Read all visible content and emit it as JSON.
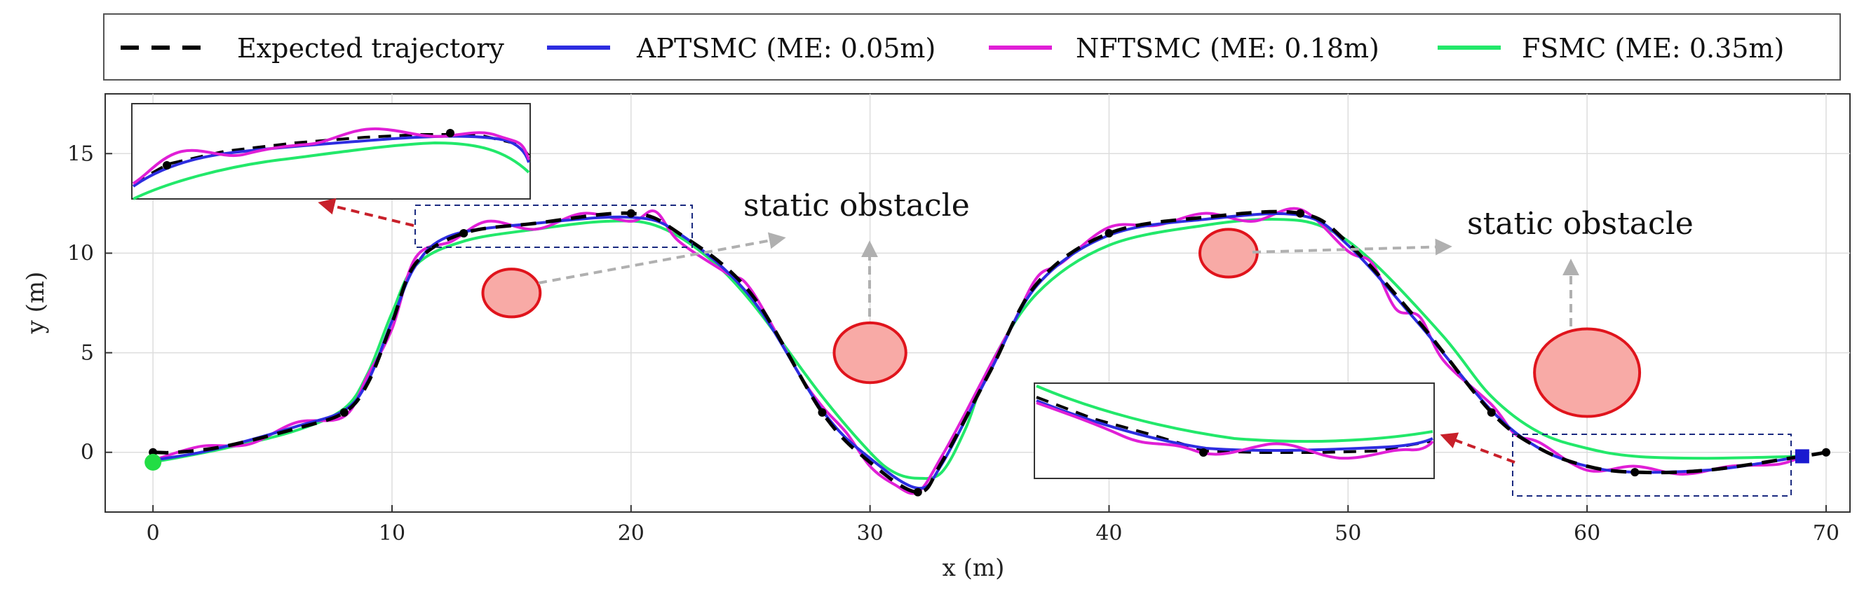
{
  "chart_data": {
    "type": "line",
    "xlabel": "x (m)",
    "ylabel": "y (m)",
    "xlim": [
      -2,
      71
    ],
    "ylim": [
      -3,
      18
    ],
    "xticks": [
      0,
      10,
      20,
      30,
      40,
      50,
      60,
      70
    ],
    "yticks": [
      0,
      5,
      10,
      15
    ],
    "grid": true,
    "legend_position": "top",
    "series": [
      {
        "name": "Expected trajectory",
        "color": "#000000",
        "style": "dashed",
        "points": [
          [
            0,
            0
          ],
          [
            1,
            0
          ],
          [
            3,
            0.3
          ],
          [
            6,
            1.2
          ],
          [
            8,
            2
          ],
          [
            9,
            3.5
          ],
          [
            10,
            6.5
          ],
          [
            11,
            9.5
          ],
          [
            13,
            11
          ],
          [
            16,
            11.5
          ],
          [
            20,
            12
          ],
          [
            22,
            11
          ],
          [
            25,
            8
          ],
          [
            28,
            2
          ],
          [
            30,
            -0.5
          ],
          [
            32,
            -2
          ],
          [
            33,
            -0.5
          ],
          [
            35,
            4
          ],
          [
            37,
            8.5
          ],
          [
            40,
            11
          ],
          [
            44,
            11.8
          ],
          [
            48,
            12
          ],
          [
            50,
            10.5
          ],
          [
            53,
            6.5
          ],
          [
            56,
            2
          ],
          [
            58,
            0.2
          ],
          [
            60,
            -0.7
          ],
          [
            62,
            -1
          ],
          [
            65,
            -0.9
          ],
          [
            69,
            -0.2
          ],
          [
            70,
            0
          ]
        ]
      },
      {
        "name": "APTSMC (ME: 0.05m)",
        "color": "#2d2de0",
        "style": "solid",
        "points": [
          [
            0,
            -0.4
          ],
          [
            2,
            0
          ],
          [
            4,
            0.6
          ],
          [
            6,
            1.3
          ],
          [
            8,
            2.1
          ],
          [
            9,
            3.6
          ],
          [
            10,
            6.6
          ],
          [
            11,
            9.4
          ],
          [
            12.5,
            10.9
          ],
          [
            16,
            11.5
          ],
          [
            20,
            11.8
          ],
          [
            22,
            11
          ],
          [
            25,
            7.8
          ],
          [
            28,
            2.1
          ],
          [
            30,
            -0.3
          ],
          [
            32,
            -1.8
          ],
          [
            33,
            -0.6
          ],
          [
            35,
            4
          ],
          [
            37,
            8.4
          ],
          [
            40,
            10.9
          ],
          [
            44,
            11.7
          ],
          [
            48,
            11.9
          ],
          [
            50,
            10.4
          ],
          [
            53,
            6.4
          ],
          [
            56,
            2.1
          ],
          [
            58,
            0.2
          ],
          [
            60,
            -0.7
          ],
          [
            62,
            -1
          ],
          [
            65,
            -0.9
          ],
          [
            67,
            -0.6
          ],
          [
            69,
            -0.2
          ]
        ]
      },
      {
        "name": "NFTSMC (ME: 0.18m)",
        "color": "#e01fd6",
        "style": "solid",
        "points": [
          [
            0,
            -0.4
          ],
          [
            2,
            0.3
          ],
          [
            4,
            0.4
          ],
          [
            6,
            1.5
          ],
          [
            8,
            1.8
          ],
          [
            9,
            3.9
          ],
          [
            10,
            6.2
          ],
          [
            11,
            9.8
          ],
          [
            12.5,
            10.6
          ],
          [
            14,
            11.6
          ],
          [
            16,
            11.2
          ],
          [
            18,
            12
          ],
          [
            20,
            11.6
          ],
          [
            21,
            12.1
          ],
          [
            22,
            10.6
          ],
          [
            24,
            9
          ],
          [
            25,
            8.2
          ],
          [
            27,
            4
          ],
          [
            28,
            2.3
          ],
          [
            29,
            1
          ],
          [
            30,
            -0.7
          ],
          [
            31,
            -1.6
          ],
          [
            32,
            -2
          ],
          [
            33,
            -0.2
          ],
          [
            34,
            2
          ],
          [
            35,
            4.3
          ],
          [
            36,
            6.5
          ],
          [
            37,
            8.8
          ],
          [
            38,
            9.5
          ],
          [
            40,
            11.3
          ],
          [
            42,
            11.4
          ],
          [
            44,
            12
          ],
          [
            46,
            11.6
          ],
          [
            48,
            12.2
          ],
          [
            50,
            10.1
          ],
          [
            51,
            9.5
          ],
          [
            52,
            7.2
          ],
          [
            53,
            6.8
          ],
          [
            54,
            4.6
          ],
          [
            56,
            2.4
          ],
          [
            57,
            0.9
          ],
          [
            58,
            0.5
          ],
          [
            60,
            -0.9
          ],
          [
            62,
            -0.7
          ],
          [
            64,
            -1.1
          ],
          [
            66,
            -0.7
          ],
          [
            68,
            -0.6
          ],
          [
            69,
            -0.2
          ]
        ]
      },
      {
        "name": "FSMC (ME: 0.35m)",
        "color": "#22e86a",
        "style": "solid",
        "points": [
          [
            0,
            -0.5
          ],
          [
            3,
            0.2
          ],
          [
            6,
            1.1
          ],
          [
            8,
            2.2
          ],
          [
            9,
            4
          ],
          [
            10,
            7
          ],
          [
            11,
            9.4
          ],
          [
            13,
            10.6
          ],
          [
            16,
            11.2
          ],
          [
            19,
            11.6
          ],
          [
            21,
            11.4
          ],
          [
            23,
            10
          ],
          [
            25,
            7.6
          ],
          [
            28,
            2.8
          ],
          [
            30,
            0
          ],
          [
            31,
            -1
          ],
          [
            32,
            -1.3
          ],
          [
            33,
            -1
          ],
          [
            34,
            1.2
          ],
          [
            35,
            4.3
          ],
          [
            37,
            8
          ],
          [
            40,
            10.4
          ],
          [
            44,
            11.4
          ],
          [
            47,
            11.7
          ],
          [
            49,
            11.3
          ],
          [
            51,
            9.6
          ],
          [
            54,
            5.8
          ],
          [
            56,
            2.8
          ],
          [
            58,
            1
          ],
          [
            60,
            0.2
          ],
          [
            62,
            -0.2
          ],
          [
            65,
            -0.3
          ],
          [
            69,
            -0.2
          ]
        ]
      }
    ],
    "waypoints": [
      [
        0,
        0
      ],
      [
        8,
        2
      ],
      [
        13,
        11
      ],
      [
        20,
        12
      ],
      [
        28,
        2
      ],
      [
        32,
        -2
      ],
      [
        40,
        11
      ],
      [
        48,
        12
      ],
      [
        56,
        2
      ],
      [
        62,
        -1
      ],
      [
        70,
        0
      ]
    ],
    "start_marker": {
      "x": 0,
      "y": -0.5,
      "color": "#22dd44"
    },
    "end_marker": {
      "x": 69,
      "y": -0.2,
      "color": "#1a1ad0"
    },
    "obstacles": [
      {
        "x": 15,
        "y": 8,
        "r": 1.2
      },
      {
        "x": 30,
        "y": 5,
        "r": 1.5
      },
      {
        "x": 45,
        "y": 10,
        "r": 1.2
      },
      {
        "x": 60,
        "y": 4,
        "r": 2.2
      }
    ],
    "annotations": [
      {
        "text": "static obstacle"
      },
      {
        "text": "static obstacle"
      }
    ]
  }
}
